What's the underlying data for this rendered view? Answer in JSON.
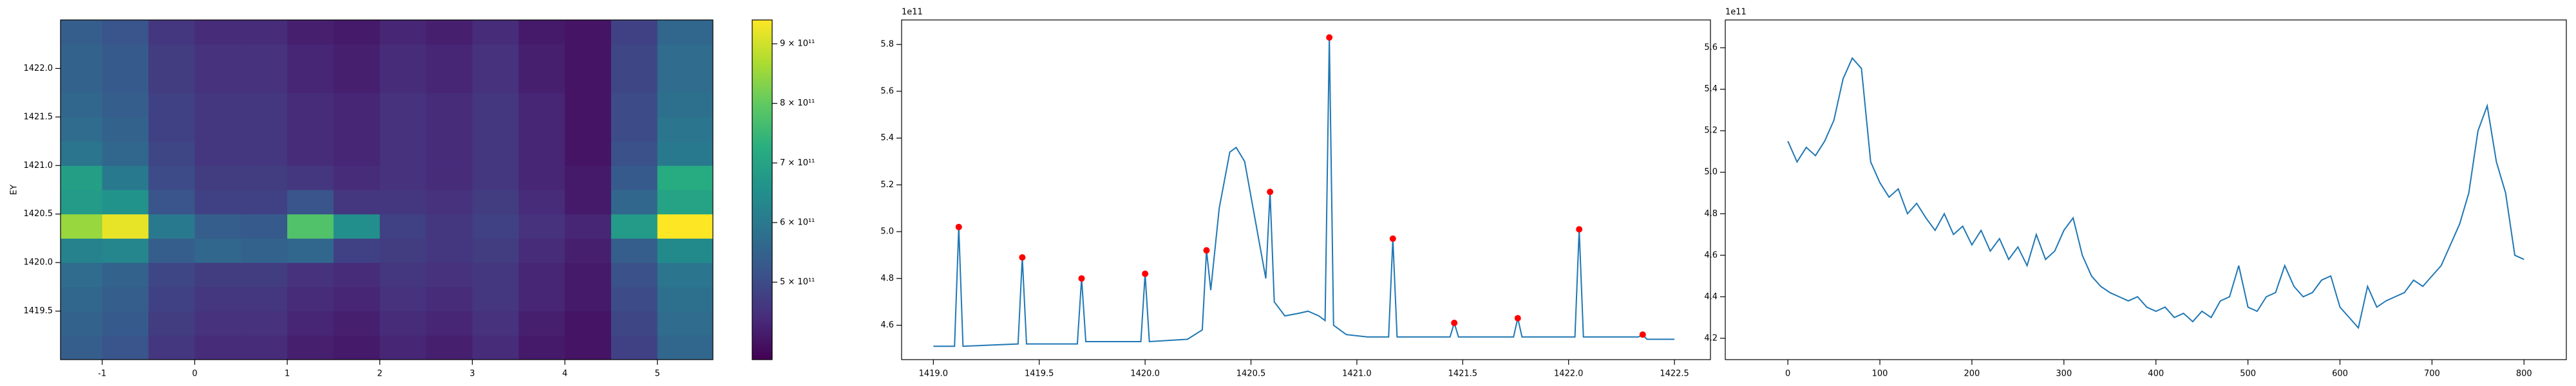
{
  "chart_data": [
    {
      "type": "heatmap",
      "ylabel": "EY",
      "colormap": "viridis",
      "xlim": [
        -1.45,
        5.6
      ],
      "ylim": [
        1419.0,
        1422.5
      ],
      "xticks": [
        -1,
        0,
        1,
        2,
        3,
        4,
        5
      ],
      "yticks": [
        1419.5,
        {
          "value": 1420,
          "label": "1420.0"
        },
        1420.5,
        {
          "value": 1421,
          "label": "1421.0"
        },
        1421.5,
        {
          "value": 1422,
          "label": "1422.0"
        }
      ],
      "x": [
        -1.25,
        -0.75,
        -0.25,
        0.25,
        0.75,
        1.25,
        1.75,
        2.25,
        2.75,
        3.25,
        3.75,
        4.25,
        4.75,
        5.25
      ],
      "y": [
        1419.125,
        1419.375,
        1419.625,
        1419.875,
        1420.125,
        1420.375,
        1420.625,
        1420.875,
        1421.125,
        1421.375,
        1421.625,
        1421.875,
        1422.125,
        1422.375
      ],
      "z": [
        [
          540000000000.0,
          520000000000.0,
          460000000000.0,
          440000000000.0,
          440000000000.0,
          420000000000.0,
          410000000000.0,
          430000000000.0,
          420000000000.0,
          440000000000.0,
          410000000000.0,
          400000000000.0,
          480000000000.0,
          560000000000.0
        ],
        [
          550000000000.0,
          530000000000.0,
          470000000000.0,
          450000000000.0,
          450000000000.0,
          430000000000.0,
          420000000000.0,
          440000000000.0,
          430000000000.0,
          450000000000.0,
          420000000000.0,
          400000000000.0,
          490000000000.0,
          570000000000.0
        ],
        [
          560000000000.0,
          540000000000.0,
          480000000000.0,
          460000000000.0,
          460000000000.0,
          440000000000.0,
          430000000000.0,
          450000000000.0,
          440000000000.0,
          460000000000.0,
          430000000000.0,
          410000000000.0,
          500000000000.0,
          580000000000.0
        ],
        [
          570000000000.0,
          550000000000.0,
          490000000000.0,
          470000000000.0,
          470000000000.0,
          450000000000.0,
          440000000000.0,
          460000000000.0,
          450000000000.0,
          460000000000.0,
          430000000000.0,
          410000000000.0,
          510000000000.0,
          590000000000.0
        ],
        [
          620000000000.0,
          630000000000.0,
          540000000000.0,
          560000000000.0,
          550000000000.0,
          560000000000.0,
          480000000000.0,
          470000000000.0,
          460000000000.0,
          470000000000.0,
          440000000000.0,
          420000000000.0,
          540000000000.0,
          640000000000.0
        ],
        [
          850000000000.0,
          920000000000.0,
          600000000000.0,
          540000000000.0,
          530000000000.0,
          780000000000.0,
          650000000000.0,
          480000000000.0,
          460000000000.0,
          480000000000.0,
          450000000000.0,
          430000000000.0,
          680000000000.0,
          940000000000.0
        ],
        [
          680000000000.0,
          660000000000.0,
          520000000000.0,
          480000000000.0,
          480000000000.0,
          520000000000.0,
          460000000000.0,
          460000000000.0,
          450000000000.0,
          470000000000.0,
          440000000000.0,
          410000000000.0,
          560000000000.0,
          700000000000.0
        ],
        [
          690000000000.0,
          600000000000.0,
          500000000000.0,
          470000000000.0,
          470000000000.0,
          460000000000.0,
          440000000000.0,
          450000000000.0,
          440000000000.0,
          460000000000.0,
          430000000000.0,
          410000000000.0,
          530000000000.0,
          720000000000.0
        ],
        [
          590000000000.0,
          560000000000.0,
          490000000000.0,
          460000000000.0,
          460000000000.0,
          440000000000.0,
          430000000000.0,
          450000000000.0,
          440000000000.0,
          460000000000.0,
          430000000000.0,
          400000000000.0,
          510000000000.0,
          600000000000.0
        ],
        [
          570000000000.0,
          550000000000.0,
          480000000000.0,
          460000000000.0,
          460000000000.0,
          440000000000.0,
          430000000000.0,
          450000000000.0,
          440000000000.0,
          460000000000.0,
          430000000000.0,
          400000000000.0,
          500000000000.0,
          590000000000.0
        ],
        [
          560000000000.0,
          540000000000.0,
          480000000000.0,
          460000000000.0,
          460000000000.0,
          440000000000.0,
          430000000000.0,
          450000000000.0,
          440000000000.0,
          460000000000.0,
          430000000000.0,
          400000000000.0,
          500000000000.0,
          580000000000.0
        ],
        [
          550000000000.0,
          530000000000.0,
          470000000000.0,
          450000000000.0,
          450000000000.0,
          430000000000.0,
          420000000000.0,
          440000000000.0,
          430000000000.0,
          450000000000.0,
          420000000000.0,
          400000000000.0,
          490000000000.0,
          570000000000.0
        ],
        [
          550000000000.0,
          530000000000.0,
          470000000000.0,
          450000000000.0,
          450000000000.0,
          430000000000.0,
          420000000000.0,
          440000000000.0,
          430000000000.0,
          450000000000.0,
          420000000000.0,
          400000000000.0,
          490000000000.0,
          570000000000.0
        ],
        [
          540000000000.0,
          520000000000.0,
          460000000000.0,
          440000000000.0,
          440000000000.0,
          420000000000.0,
          410000000000.0,
          430000000000.0,
          420000000000.0,
          440000000000.0,
          410000000000.0,
          400000000000.0,
          480000000000.0,
          560000000000.0
        ]
      ],
      "clim": [
        370000000000.0,
        940000000000.0
      ],
      "cticks": [
        {
          "value": 500000000000.0,
          "label": "5 × 10¹¹"
        },
        {
          "value": 600000000000.0,
          "label": "6 × 10¹¹"
        },
        {
          "value": 700000000000.0,
          "label": "7 × 10¹¹"
        },
        {
          "value": 800000000000.0,
          "label": "8 × 10¹¹"
        },
        {
          "value": 900000000000.0,
          "label": "9 × 10¹¹"
        }
      ]
    },
    {
      "type": "line",
      "offset_label": "1e11",
      "xlim": [
        1418.85,
        1422.67
      ],
      "ylim": [
        4.453,
        5.905
      ],
      "xticks": [
        {
          "value": 1419,
          "label": "1419.0"
        },
        1419.5,
        {
          "value": 1420,
          "label": "1420.0"
        },
        1420.5,
        {
          "value": 1421,
          "label": "1421.0"
        },
        1421.5,
        {
          "value": 1422,
          "label": "1422.0"
        },
        1422.5
      ],
      "yticks": [
        4.6,
        4.8,
        {
          "value": 5,
          "label": "5.0"
        },
        5.2,
        5.4,
        5.6,
        5.8
      ],
      "series": [
        {
          "type": "line",
          "color": "#1f77b4",
          "x": [
            1419.0,
            1419.1,
            1419.12,
            1419.14,
            1419.4,
            1419.42,
            1419.44,
            1419.68,
            1419.7,
            1419.72,
            1419.98,
            1420.0,
            1420.02,
            1420.2,
            1420.27,
            1420.29,
            1420.31,
            1420.35,
            1420.4,
            1420.43,
            1420.47,
            1420.52,
            1420.57,
            1420.59,
            1420.61,
            1420.66,
            1420.72,
            1420.77,
            1420.82,
            1420.85,
            1420.87,
            1420.89,
            1420.95,
            1421.05,
            1421.15,
            1421.17,
            1421.19,
            1421.44,
            1421.46,
            1421.48,
            1421.74,
            1421.76,
            1421.78,
            1422.03,
            1422.05,
            1422.07,
            1422.33,
            1422.35,
            1422.37,
            1422.5
          ],
          "values": [
            4.51,
            4.51,
            5.02,
            4.51,
            4.52,
            4.89,
            4.52,
            4.52,
            4.8,
            4.53,
            4.53,
            4.82,
            4.53,
            4.54,
            4.58,
            4.92,
            4.75,
            5.1,
            5.34,
            5.36,
            5.3,
            5.05,
            4.8,
            5.17,
            4.7,
            4.64,
            4.65,
            4.66,
            4.64,
            4.62,
            5.83,
            4.6,
            4.56,
            4.55,
            4.55,
            4.97,
            4.55,
            4.55,
            4.61,
            4.55,
            4.55,
            4.63,
            4.55,
            4.55,
            5.01,
            4.55,
            4.55,
            4.56,
            4.54,
            4.54
          ]
        },
        {
          "type": "scatter",
          "color": "#ff0000",
          "x": [
            1419.12,
            1419.42,
            1419.7,
            1420.0,
            1420.29,
            1420.59,
            1420.87,
            1421.17,
            1421.46,
            1421.76,
            1422.05,
            1422.35
          ],
          "values": [
            5.02,
            4.89,
            4.8,
            4.82,
            4.92,
            5.17,
            5.83,
            4.97,
            4.61,
            4.63,
            5.01,
            4.56
          ]
        }
      ]
    },
    {
      "type": "line",
      "offset_label": "1e11",
      "xlim": [
        -68,
        846
      ],
      "ylim": [
        4.097,
        5.734
      ],
      "xticks": [
        0,
        100,
        200,
        300,
        400,
        500,
        600,
        700,
        800
      ],
      "yticks": [
        4.2,
        4.4,
        4.6,
        4.8,
        {
          "value": 5,
          "label": "5.0"
        },
        5.2,
        5.4,
        5.6
      ],
      "series": [
        {
          "type": "line",
          "color": "#1f77b4",
          "x": [
            0,
            10,
            20,
            30,
            40,
            50,
            60,
            70,
            80,
            90,
            100,
            110,
            120,
            130,
            140,
            150,
            160,
            170,
            180,
            190,
            200,
            210,
            220,
            230,
            240,
            250,
            260,
            270,
            280,
            290,
            300,
            310,
            320,
            330,
            340,
            350,
            360,
            370,
            380,
            390,
            400,
            410,
            420,
            430,
            440,
            450,
            460,
            470,
            480,
            490,
            500,
            510,
            520,
            530,
            540,
            550,
            560,
            570,
            580,
            590,
            600,
            610,
            620,
            630,
            640,
            650,
            660,
            670,
            680,
            690,
            700,
            710,
            720,
            730,
            740,
            750,
            760,
            770,
            780,
            790,
            800
          ],
          "values": [
            5.15,
            5.05,
            5.12,
            5.08,
            5.15,
            5.25,
            5.45,
            5.55,
            5.5,
            5.05,
            4.95,
            4.88,
            4.92,
            4.8,
            4.85,
            4.78,
            4.72,
            4.8,
            4.7,
            4.74,
            4.65,
            4.72,
            4.62,
            4.68,
            4.58,
            4.64,
            4.55,
            4.7,
            4.58,
            4.62,
            4.72,
            4.78,
            4.6,
            4.5,
            4.45,
            4.42,
            4.4,
            4.38,
            4.4,
            4.35,
            4.33,
            4.35,
            4.3,
            4.32,
            4.28,
            4.33,
            4.3,
            4.38,
            4.4,
            4.55,
            4.35,
            4.33,
            4.4,
            4.42,
            4.55,
            4.45,
            4.4,
            4.42,
            4.48,
            4.5,
            4.35,
            4.3,
            4.25,
            4.45,
            4.35,
            4.38,
            4.4,
            4.42,
            4.48,
            4.45,
            4.5,
            4.55,
            4.65,
            4.75,
            4.9,
            5.2,
            5.32,
            5.05,
            4.9,
            4.6,
            4.58
          ]
        }
      ]
    }
  ]
}
